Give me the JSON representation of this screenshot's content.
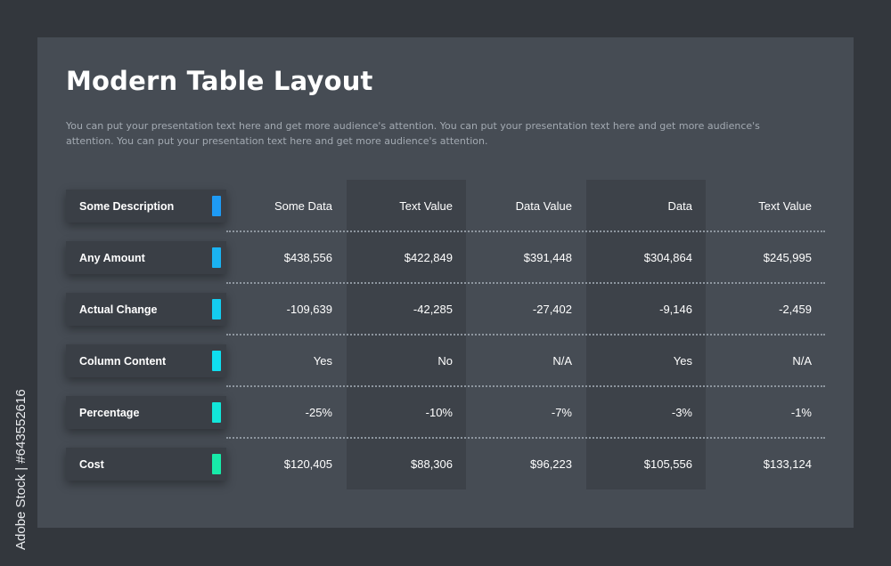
{
  "title": "Modern Table Layout",
  "description": "You can put your presentation text here and get more audience's attention. You can put your presentation text here and get more audience's attention. You can put your presentation text here and get more audience's attention.",
  "table": {
    "columns": [
      "Some Data",
      "Text Value",
      "Data Value",
      "Data",
      "Text Value"
    ],
    "rows": [
      {
        "label": "Some Description",
        "color": "#1e9bf5",
        "cells": []
      },
      {
        "label": "Any Amount",
        "color": "#1ab3f2",
        "cells": [
          "$438,556",
          "$422,849",
          "$391,448",
          "$304,864",
          "$245,995"
        ]
      },
      {
        "label": "Actual Change",
        "color": "#14cdf0",
        "cells": [
          "-109,639",
          "-42,285",
          "-27,402",
          "-9,146",
          "-2,459"
        ]
      },
      {
        "label": "Column Content",
        "color": "#0fdff0",
        "cells": [
          "Yes",
          "No",
          "N/A",
          "Yes",
          "N/A"
        ]
      },
      {
        "label": "Percentage",
        "color": "#12e6da",
        "cells": [
          "-25%",
          "-10%",
          "-7%",
          "-3%",
          "-1%"
        ]
      },
      {
        "label": "Cost",
        "color": "#17eba9",
        "cells": [
          "$120,405",
          "$88,306",
          "$96,223",
          "$105,556",
          "$133,124"
        ]
      }
    ]
  },
  "watermark": "Adobe Stock | #643552616"
}
